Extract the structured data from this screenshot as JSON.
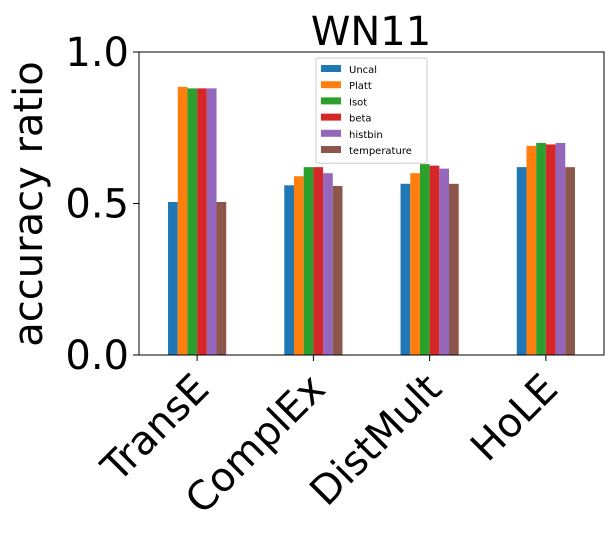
{
  "chart_data": {
    "type": "bar",
    "title": "WN11",
    "xlabel": "",
    "ylabel": "accuracy ratio",
    "ylim": [
      0.0,
      1.0
    ],
    "yticks": [
      "0.0",
      "0.5",
      "1.0"
    ],
    "categories": [
      "TransE",
      "ComplEx",
      "DistMult",
      "HoLE"
    ],
    "legend_position": "top-center",
    "grid": false,
    "series": [
      {
        "name": "Uncal",
        "color": "#1f77b4",
        "values": [
          0.505,
          0.56,
          0.565,
          0.62
        ]
      },
      {
        "name": "Platt",
        "color": "#ff7f0e",
        "values": [
          0.885,
          0.59,
          0.6,
          0.69
        ]
      },
      {
        "name": "Isot",
        "color": "#2ca02c",
        "values": [
          0.88,
          0.62,
          0.63,
          0.7
        ]
      },
      {
        "name": "beta",
        "color": "#d62728",
        "values": [
          0.88,
          0.62,
          0.625,
          0.695
        ]
      },
      {
        "name": "histbin",
        "color": "#9467bd",
        "values": [
          0.88,
          0.6,
          0.615,
          0.7
        ]
      },
      {
        "name": "temperature",
        "color": "#8c564b",
        "values": [
          0.505,
          0.558,
          0.565,
          0.62
        ]
      }
    ]
  }
}
